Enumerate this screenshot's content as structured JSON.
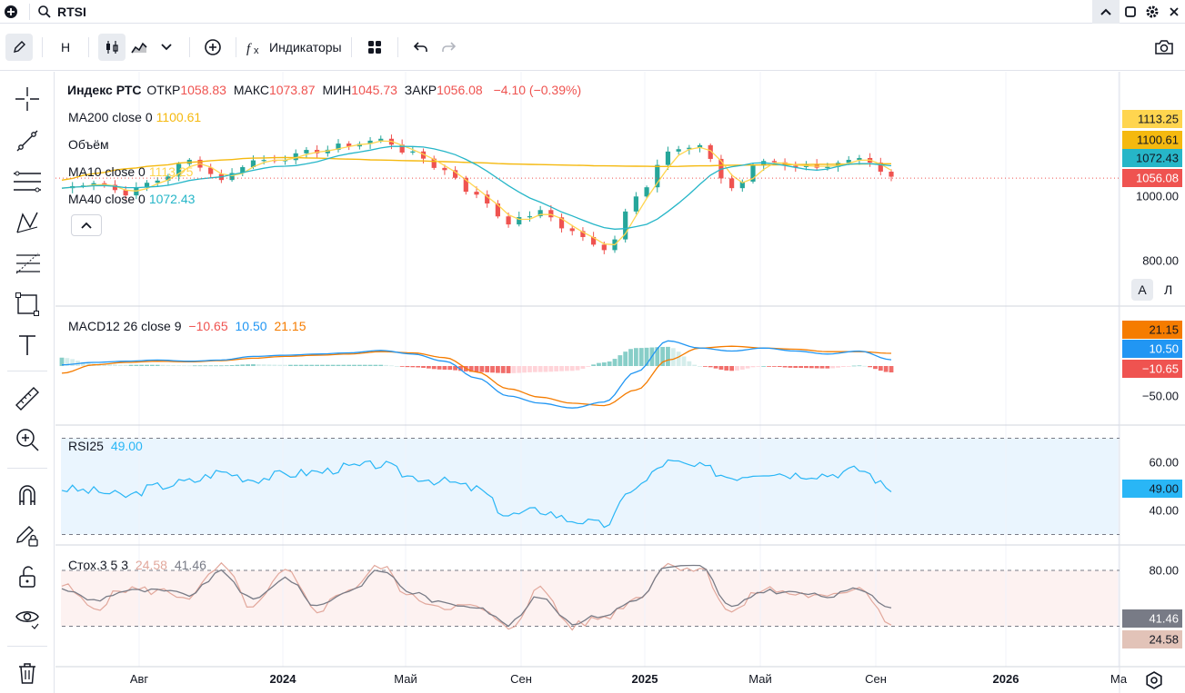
{
  "topbar": {
    "symbol": "RTSI"
  },
  "toolbar": {
    "interval": "H",
    "indicators_label": "Индикаторы"
  },
  "price_scale": {
    "mode_a": "A",
    "mode_l": "Л"
  },
  "legend": {
    "main": {
      "name": "Индекс РТС",
      "open_label": "ОТКР",
      "open": "1058.83",
      "high_label": "МАКС",
      "high": "1073.87",
      "low_label": "МИН",
      "low": "1045.73",
      "close_label": "ЗАКР",
      "close": "1056.08",
      "change": "−4.10 (−0.39%)"
    },
    "ma200": {
      "label": "MA200 close 0",
      "value": "1100.61"
    },
    "volume": {
      "label": "Объём"
    },
    "ma10": {
      "label": "MA10 close 0",
      "value": "1113.25"
    },
    "ma40": {
      "label": "MA40 close 0",
      "value": "1072.43"
    },
    "macd": {
      "label": "MACD12 26 close 9",
      "hist": "−10.65",
      "macd": "10.50",
      "signal": "21.15"
    },
    "rsi": {
      "label": "RSI25",
      "value": "49.00"
    },
    "stoch": {
      "label": "Стох.3 5 3",
      "k": "24.58",
      "d": "41.46"
    }
  },
  "colors": {
    "up": "#26a69a",
    "down": "#ef5350",
    "ma200": "#f5b90f",
    "ma10": "#ffd54f",
    "ma40": "#26b6c8",
    "macd": "#2196f3",
    "signal": "#f57c00",
    "rsi": "#29b6f6",
    "stoch_k": "#e2a89c",
    "stoch_d": "#787b86"
  },
  "chart_data": [
    {
      "type": "candlestick",
      "title": "Индекс РТС",
      "x": [
        "2023-07",
        "2023-08",
        "2023-09",
        "2023-10",
        "2023-11",
        "2023-12",
        "2024-01",
        "2024-02",
        "2024-03",
        "2024-04",
        "2024-05",
        "2024-06",
        "2024-07",
        "2024-08",
        "2024-09",
        "2024-10",
        "2024-11",
        "2024-12",
        "2025-01",
        "2025-02",
        "2025-03",
        "2025-04",
        "2025-05",
        "2025-06",
        "2025-07",
        "2025-08",
        "2025-09"
      ],
      "close": [
        1025,
        1045,
        1010,
        1050,
        1110,
        1055,
        1110,
        1120,
        1140,
        1160,
        1175,
        1130,
        1080,
        1000,
        920,
        950,
        890,
        830,
        1000,
        1140,
        1150,
        1025,
        1110,
        1095,
        1095,
        1110,
        1056
      ],
      "y_ticks": [
        800,
        1000
      ],
      "last_values": {
        "close": 1056.08,
        "ma10": 1113.25,
        "ma200": 1100.61,
        "ma40": 1072.43
      },
      "overlays": [
        "MA200 close 0",
        "MA10 close 0",
        "MA40 close 0"
      ]
    },
    {
      "type": "line",
      "title": "MACD12 26 close 9",
      "x": [
        "2023-07",
        "2023-08",
        "2023-09",
        "2023-10",
        "2023-11",
        "2023-12",
        "2024-01",
        "2024-02",
        "2024-03",
        "2024-04",
        "2024-05",
        "2024-06",
        "2024-07",
        "2024-08",
        "2024-09",
        "2024-10",
        "2024-11",
        "2024-12",
        "2025-01",
        "2025-02",
        "2025-03",
        "2025-04",
        "2025-05",
        "2025-06",
        "2025-07",
        "2025-08",
        "2025-09"
      ],
      "series": [
        {
          "name": "MACD",
          "values": [
            2,
            6,
            8,
            10,
            8,
            10,
            16,
            18,
            20,
            22,
            26,
            20,
            8,
            -20,
            -50,
            -62,
            -70,
            -60,
            -10,
            42,
            30,
            25,
            30,
            25,
            20,
            25,
            10.5
          ]
        },
        {
          "name": "Signal",
          "values": [
            -12,
            2,
            6,
            8,
            7,
            9,
            13,
            16,
            18,
            20,
            24,
            22,
            14,
            -10,
            -38,
            -52,
            -62,
            -66,
            -40,
            10,
            30,
            33,
            30,
            28,
            24,
            24,
            21.15
          ]
        },
        {
          "name": "Histogram",
          "values": [
            14,
            4,
            2,
            2,
            1,
            1,
            3,
            2,
            2,
            2,
            2,
            -2,
            -6,
            -10,
            -12,
            -10,
            -8,
            6,
            30,
            32,
            0,
            -8,
            0,
            -3,
            -4,
            1,
            -10.65
          ]
        }
      ],
      "y_ticks": [
        -50
      ]
    },
    {
      "type": "line",
      "title": "RSI25",
      "x": [
        "2023-07",
        "2023-08",
        "2023-09",
        "2023-10",
        "2023-11",
        "2023-12",
        "2024-01",
        "2024-02",
        "2024-03",
        "2024-04",
        "2024-05",
        "2024-06",
        "2024-07",
        "2024-08",
        "2024-09",
        "2024-10",
        "2024-11",
        "2024-12",
        "2025-01",
        "2025-02",
        "2025-03",
        "2025-04",
        "2025-05",
        "2025-06",
        "2025-07",
        "2025-08",
        "2025-09"
      ],
      "series": [
        {
          "name": "RSI25",
          "values": [
            49,
            48,
            46,
            50,
            52,
            56,
            53,
            55,
            56,
            58,
            59,
            54,
            52,
            49,
            38,
            40,
            36,
            34,
            50,
            60,
            58,
            54,
            56,
            55,
            55,
            57,
            49
          ]
        }
      ],
      "y_ticks": [
        40,
        60
      ]
    },
    {
      "type": "line",
      "title": "Стох.3 5 3",
      "x": [
        "2023-07",
        "2023-08",
        "2023-09",
        "2023-10",
        "2023-11",
        "2023-12",
        "2024-01",
        "2024-02",
        "2024-03",
        "2024-04",
        "2024-05",
        "2024-06",
        "2024-07",
        "2024-08",
        "2024-09",
        "2024-10",
        "2024-11",
        "2024-12",
        "2025-01",
        "2025-02",
        "2025-03",
        "2025-04",
        "2025-05",
        "2025-06",
        "2025-07",
        "2025-08",
        "2025-09"
      ],
      "series": [
        {
          "name": "%K",
          "values": [
            64,
            40,
            60,
            58,
            52,
            84,
            40,
            78,
            38,
            60,
            84,
            50,
            42,
            40,
            18,
            60,
            20,
            30,
            50,
            86,
            82,
            35,
            60,
            55,
            50,
            63,
            24.58
          ]
        },
        {
          "name": "%D",
          "values": [
            60,
            48,
            58,
            58,
            54,
            78,
            48,
            72,
            42,
            58,
            80,
            56,
            44,
            42,
            22,
            52,
            24,
            32,
            48,
            84,
            84,
            40,
            58,
            56,
            52,
            60,
            41.46
          ]
        }
      ],
      "y_ticks": [
        80
      ]
    }
  ],
  "x_axis": {
    "labels": [
      "Авг",
      "2024",
      "Май",
      "Сен",
      "2025",
      "Май",
      "Сен",
      "2026",
      "Ма"
    ]
  },
  "price_tags": {
    "ma10": "1113.25",
    "ma200": "1100.61",
    "ma40": "1072.43",
    "close": "1056.08",
    "tick_1000": "1000.00",
    "tick_800": "800.00"
  },
  "macd_tags": {
    "signal": "21.15",
    "macd": "10.50",
    "hist": "−10.65",
    "tick_m50": "−50.00"
  },
  "rsi_tags": {
    "value": "49.00",
    "tick_60": "60.00",
    "tick_40": "40.00"
  },
  "stoch_tags": {
    "d": "41.46",
    "k": "24.58",
    "tick_80": "80.00"
  }
}
